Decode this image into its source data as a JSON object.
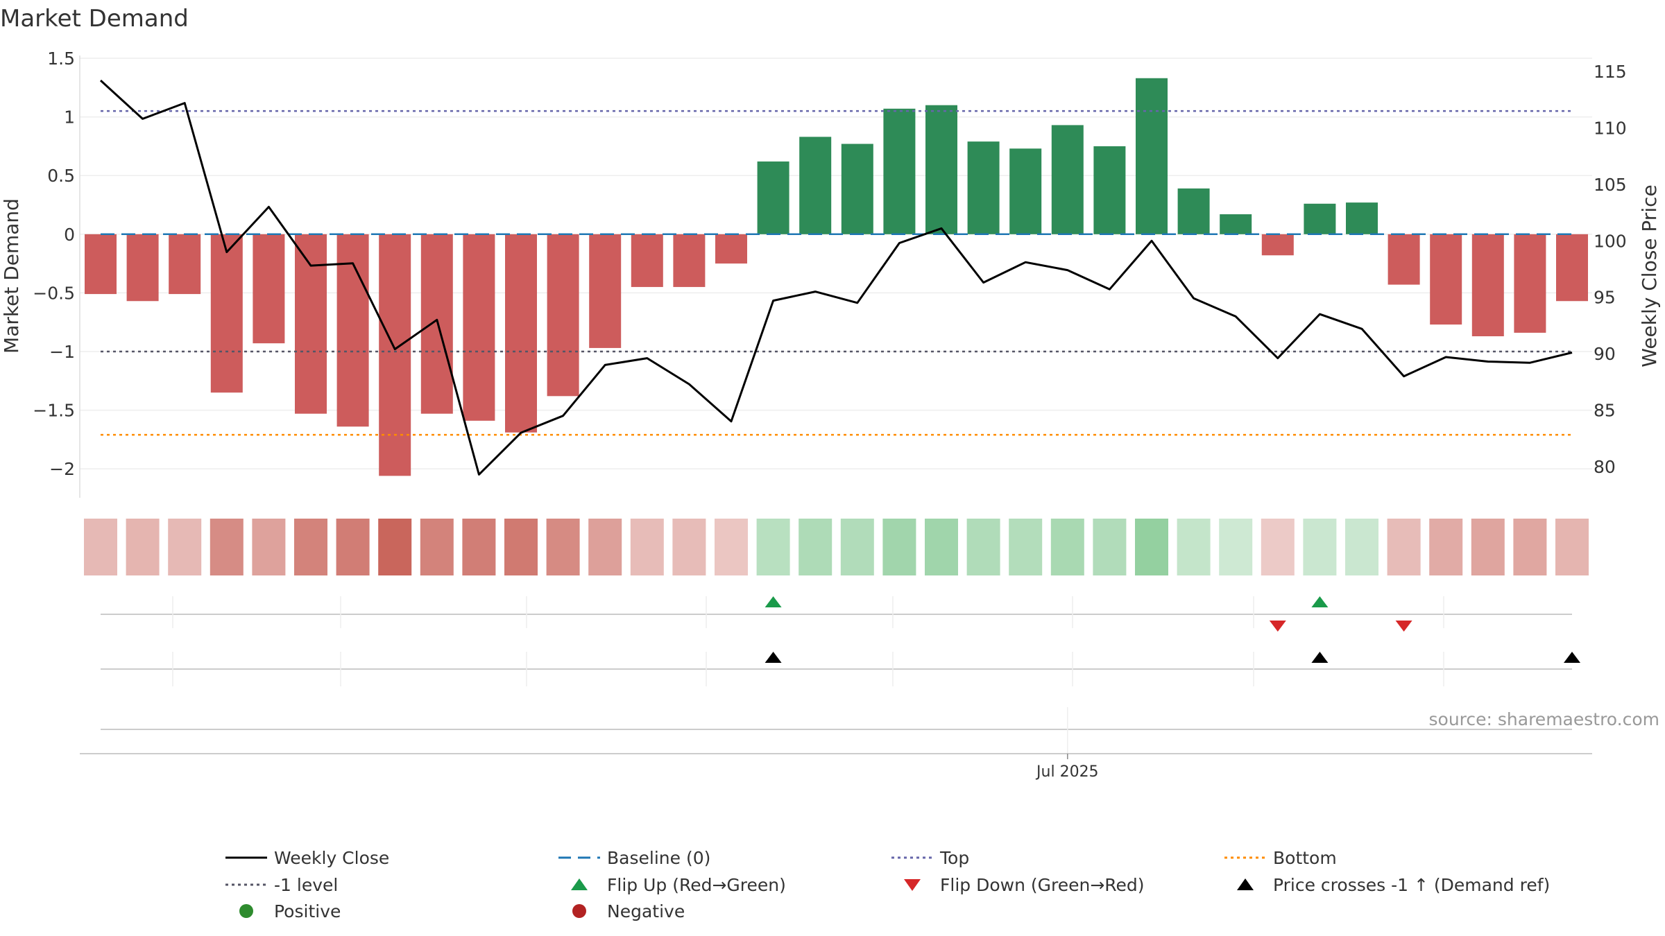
{
  "chart_data": {
    "type": "bar",
    "title": "Market Demand",
    "ylabel_left": "Market Demand",
    "ylabel_right": "Weekly Close Price",
    "source": "source: sharemaestro.com",
    "x_tick_label": "Jul 2025",
    "x_tick_index": 23,
    "ylim_left": [
      -2.25,
      1.5
    ],
    "ylim_right": [
      77,
      116
    ],
    "left_ticks": [
      {
        "v": 1.5,
        "label": "1.5"
      },
      {
        "v": 1,
        "label": "1"
      },
      {
        "v": 0.5,
        "label": "0.5"
      },
      {
        "v": 0,
        "label": "0"
      },
      {
        "v": -0.5,
        "label": "−0.5"
      },
      {
        "v": -1,
        "label": "−1"
      },
      {
        "v": -1.5,
        "label": "−1.5"
      },
      {
        "v": -2,
        "label": "−2"
      }
    ],
    "right_ticks": [
      {
        "v": 115,
        "label": "115"
      },
      {
        "v": 110,
        "label": "110"
      },
      {
        "v": 105,
        "label": "105"
      },
      {
        "v": 100,
        "label": "100"
      },
      {
        "v": 95,
        "label": "95"
      },
      {
        "v": 90,
        "label": "90"
      },
      {
        "v": 85,
        "label": "85"
      },
      {
        "v": 80,
        "label": "80"
      }
    ],
    "reference_lines": {
      "top": 1.05,
      "baseline": 0,
      "minus_one": -1,
      "bottom": -1.71
    },
    "demand": [
      -0.51,
      -0.57,
      -0.51,
      -1.35,
      -0.93,
      -1.53,
      -1.64,
      -2.06,
      -1.53,
      -1.59,
      -1.69,
      -1.38,
      -0.97,
      -0.45,
      -0.45,
      -0.25,
      0.62,
      0.83,
      0.77,
      1.07,
      1.1,
      0.79,
      0.73,
      0.93,
      0.75,
      1.33,
      0.39,
      0.17,
      -0.18,
      0.26,
      0.27,
      -0.43,
      -0.77,
      -0.87,
      -0.84,
      -0.57
    ],
    "weekly_close": [
      114.2,
      110.8,
      112.2,
      99.0,
      103.0,
      97.8,
      98.0,
      90.4,
      93.0,
      79.3,
      83.0,
      84.5,
      89.0,
      89.6,
      87.3,
      84.0,
      94.7,
      95.5,
      94.5,
      99.8,
      101.1,
      96.3,
      98.1,
      97.4,
      95.7,
      100.0,
      94.9,
      93.3,
      89.6,
      93.5,
      92.2,
      88.0,
      89.7,
      89.3,
      89.2,
      90.1
    ],
    "flip_up_indices": [
      16,
      29
    ],
    "flip_down_indices": [
      28,
      31
    ],
    "price_cross_indices": [
      16,
      29,
      35
    ],
    "legend": [
      "Weekly Close",
      "Baseline (0)",
      "Top",
      "Bottom",
      "-1 level",
      "Flip Up (Red→Green)",
      "Flip Down (Green→Red)",
      "Price crosses -1 ↑ (Demand ref)",
      "Positive",
      "Negative"
    ]
  },
  "colors": {
    "positive": "#2e8b57",
    "negative": "#cd5c5c",
    "price": "#000000",
    "baseline": "#1f77b4",
    "top": "#6666aa",
    "bottom": "#ff8c00",
    "minus_one": "#555566",
    "flip_up": "#1a9a4a",
    "flip_down": "#d62728",
    "cross": "#000000",
    "legend_positive": "#2e8b2e",
    "legend_negative": "#b22222"
  }
}
